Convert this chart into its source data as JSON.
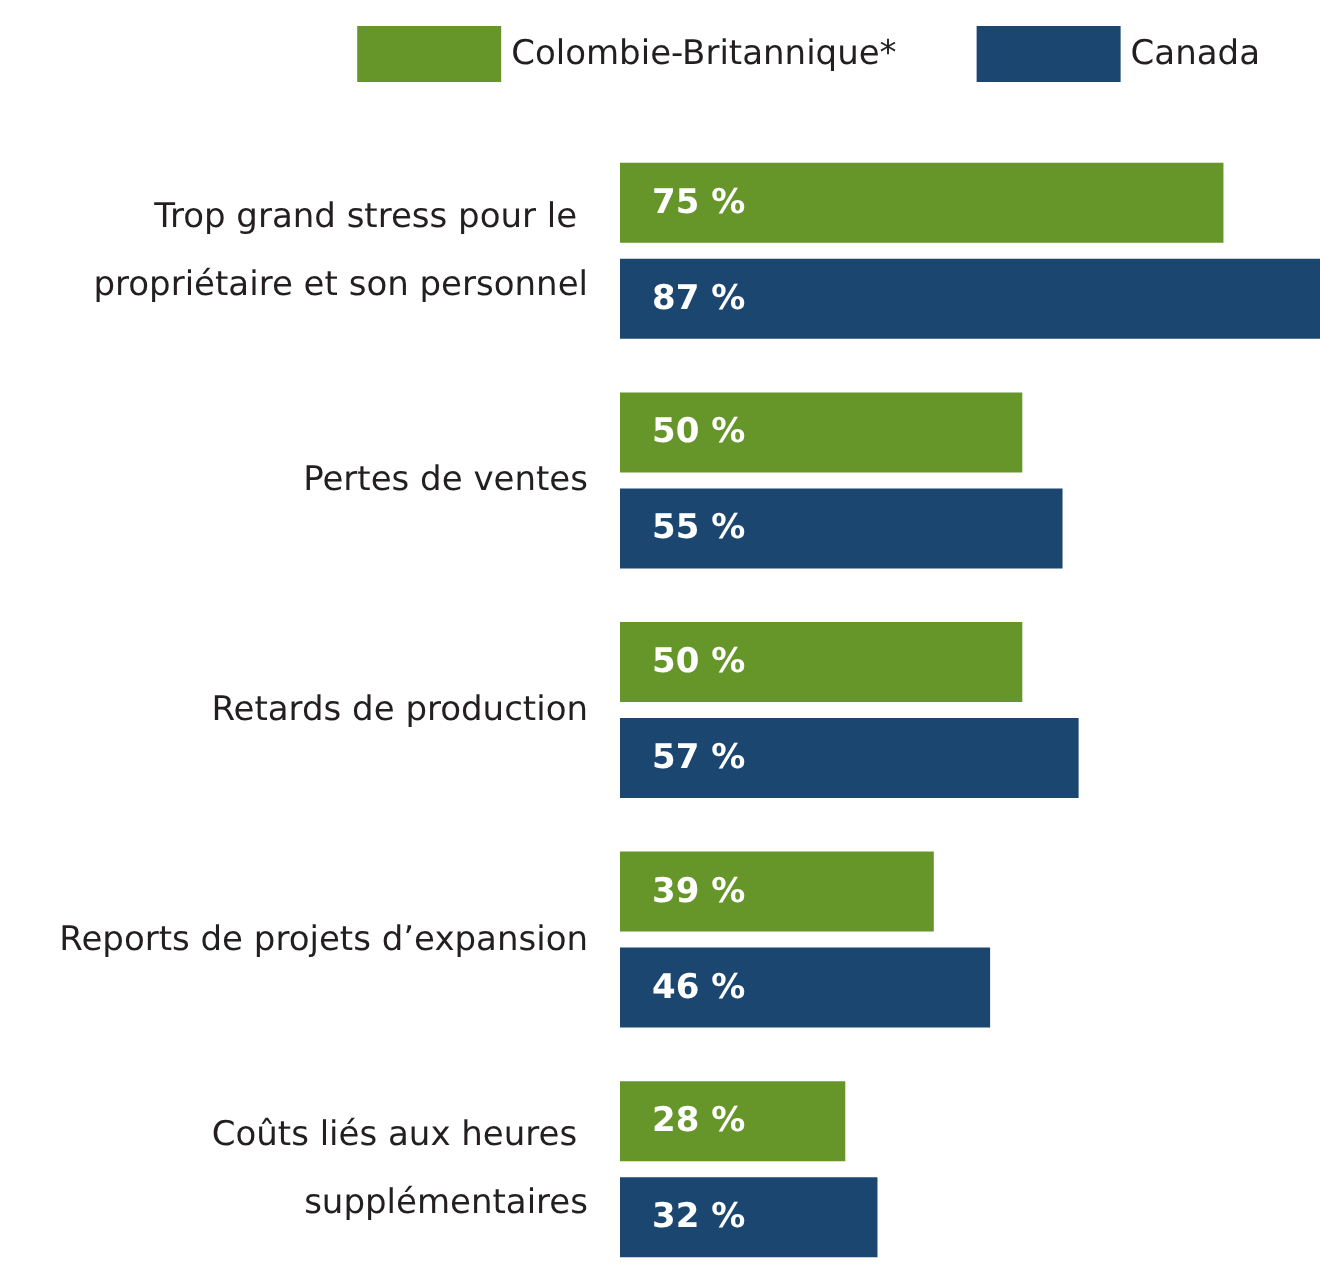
{
  "chart_data": {
    "type": "bar",
    "orientation": "horizontal",
    "categories": [
      "Trop grand stress pour le propriétaire et son personnel",
      "Pertes de ventes",
      "Retards de production",
      "Reports de projets d’expansion",
      "Coûts liés aux heures supplémentaires"
    ],
    "series": [
      {
        "name": "Colombie-Britannique*",
        "color": "#66952a",
        "values": [
          75,
          50,
          50,
          39,
          28
        ],
        "value_labels": [
          "75 %",
          "50 %",
          "50 %",
          "39 %",
          "28 %"
        ]
      },
      {
        "name": "Canada",
        "color": "#1b4670",
        "values": [
          87,
          55,
          57,
          46,
          32
        ],
        "value_labels": [
          "87 %",
          "55 %",
          "57 %",
          "46 %",
          "32 %"
        ]
      }
    ],
    "legend": "top"
  }
}
